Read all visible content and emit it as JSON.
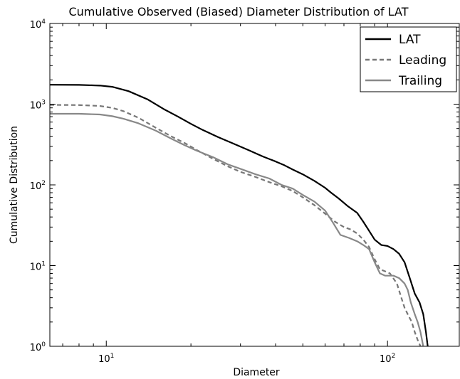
{
  "chart_data": {
    "type": "line",
    "title": "Cumulative Observed (Biased) Diameter Distribution of LAT",
    "xlabel": "Diameter",
    "ylabel": "Cumulative Distribution",
    "xscale": "log",
    "yscale": "log",
    "xlim": [
      6.3,
      180
    ],
    "ylim": [
      1,
      10000
    ],
    "grid": false,
    "legend_position": "top-right",
    "x_ticks": [
      {
        "value": 10,
        "base": "10",
        "exp": "1"
      },
      {
        "value": 100,
        "base": "10",
        "exp": "2"
      }
    ],
    "y_ticks": [
      {
        "value": 1,
        "base": "10",
        "exp": "0"
      },
      {
        "value": 10,
        "base": "10",
        "exp": "1"
      },
      {
        "value": 100,
        "base": "10",
        "exp": "2"
      },
      {
        "value": 1000,
        "base": "10",
        "exp": "3"
      },
      {
        "value": 10000,
        "base": "10",
        "exp": "4"
      }
    ],
    "series": [
      {
        "name": "LAT",
        "color": "#000000",
        "dash": "solid",
        "points": [
          [
            6.3,
            1740
          ],
          [
            8.0,
            1735
          ],
          [
            9.5,
            1700
          ],
          [
            10.5,
            1640
          ],
          [
            12,
            1450
          ],
          [
            14,
            1150
          ],
          [
            16,
            870
          ],
          [
            18,
            700
          ],
          [
            20,
            570
          ],
          [
            22,
            480
          ],
          [
            25,
            390
          ],
          [
            28,
            330
          ],
          [
            32,
            270
          ],
          [
            36,
            225
          ],
          [
            40,
            195
          ],
          [
            43,
            175
          ],
          [
            46,
            155
          ],
          [
            50,
            135
          ],
          [
            55,
            112
          ],
          [
            60,
            92
          ],
          [
            63,
            80
          ],
          [
            67,
            68
          ],
          [
            72,
            55
          ],
          [
            78,
            45
          ],
          [
            82,
            35
          ],
          [
            86,
            27
          ],
          [
            90,
            21
          ],
          [
            95,
            18
          ],
          [
            100,
            17.5
          ],
          [
            105,
            16
          ],
          [
            110,
            14
          ],
          [
            115,
            11
          ],
          [
            120,
            7
          ],
          [
            125,
            4.5
          ],
          [
            130,
            3.5
          ],
          [
            134,
            2.5
          ],
          [
            137,
            1.5
          ],
          [
            139,
            1.0
          ]
        ]
      },
      {
        "name": "Leading",
        "color": "#777777",
        "dash": "dashed",
        "points": [
          [
            6.3,
            980
          ],
          [
            8.0,
            975
          ],
          [
            9.5,
            950
          ],
          [
            10.5,
            900
          ],
          [
            11.5,
            820
          ],
          [
            13,
            680
          ],
          [
            15,
            510
          ],
          [
            17,
            400
          ],
          [
            19,
            330
          ],
          [
            21,
            270
          ],
          [
            24,
            210
          ],
          [
            27,
            170
          ],
          [
            30,
            145
          ],
          [
            34,
            125
          ],
          [
            38,
            108
          ],
          [
            42,
            96
          ],
          [
            46,
            84
          ],
          [
            50,
            70
          ],
          [
            55,
            56
          ],
          [
            60,
            44
          ],
          [
            65,
            35
          ],
          [
            70,
            30
          ],
          [
            74,
            28
          ],
          [
            78,
            25
          ],
          [
            82,
            21
          ],
          [
            86,
            17
          ],
          [
            90,
            12
          ],
          [
            94,
            9
          ],
          [
            98,
            8.5
          ],
          [
            102,
            8
          ],
          [
            108,
            6
          ],
          [
            112,
            4
          ],
          [
            115,
            3
          ],
          [
            118,
            2.5
          ],
          [
            122,
            2
          ],
          [
            125,
            1.5
          ],
          [
            128,
            1.2
          ],
          [
            131,
            1.0
          ]
        ]
      },
      {
        "name": "Trailing",
        "color": "#888888",
        "dash": "solid",
        "points": [
          [
            6.3,
            760
          ],
          [
            8.0,
            760
          ],
          [
            9.5,
            745
          ],
          [
            10.5,
            710
          ],
          [
            11.5,
            660
          ],
          [
            13,
            580
          ],
          [
            15,
            470
          ],
          [
            17,
            375
          ],
          [
            19,
            310
          ],
          [
            21,
            265
          ],
          [
            24,
            220
          ],
          [
            27,
            180
          ],
          [
            30,
            158
          ],
          [
            34,
            135
          ],
          [
            38,
            120
          ],
          [
            42,
            100
          ],
          [
            46,
            90
          ],
          [
            50,
            75
          ],
          [
            55,
            62
          ],
          [
            60,
            48
          ],
          [
            64,
            34
          ],
          [
            68,
            24
          ],
          [
            73,
            22
          ],
          [
            78,
            20
          ],
          [
            82,
            18
          ],
          [
            86,
            16
          ],
          [
            90,
            11
          ],
          [
            94,
            8
          ],
          [
            98,
            7.5
          ],
          [
            105,
            7.5
          ],
          [
            110,
            7
          ],
          [
            115,
            6
          ],
          [
            118,
            5
          ],
          [
            121,
            3.5
          ],
          [
            125,
            2.5
          ],
          [
            128,
            2
          ],
          [
            131,
            1.5
          ],
          [
            134,
            1.0
          ]
        ]
      }
    ]
  }
}
